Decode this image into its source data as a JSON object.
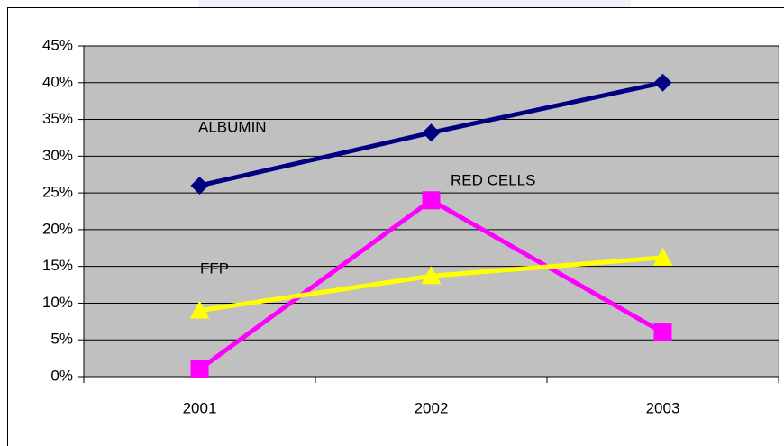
{
  "chart_data": {
    "type": "line",
    "categories": [
      "2001",
      "2002",
      "2003"
    ],
    "series": [
      {
        "name": "ALBUMIN",
        "color": "#000080",
        "marker": "diamond",
        "values": [
          26,
          33.2,
          40
        ]
      },
      {
        "name": "RED CELLS",
        "color": "#ff00ff",
        "marker": "square",
        "values": [
          1,
          24,
          6
        ]
      },
      {
        "name": "FFP",
        "color": "#ffff00",
        "marker": "triangle",
        "values": [
          9,
          13.7,
          16.2
        ]
      }
    ],
    "ylim": [
      0,
      45
    ],
    "yticks": [
      {
        "value": 0,
        "label": "0%"
      },
      {
        "value": 5,
        "label": "5%"
      },
      {
        "value": 10,
        "label": "10%"
      },
      {
        "value": 15,
        "label": "15%"
      },
      {
        "value": 20,
        "label": "20%"
      },
      {
        "value": 25,
        "label": "25%"
      },
      {
        "value": 30,
        "label": "30%"
      },
      {
        "value": 35,
        "label": "35%"
      },
      {
        "value": 40,
        "label": "40%"
      },
      {
        "value": 45,
        "label": "45%"
      }
    ],
    "grid": true
  }
}
